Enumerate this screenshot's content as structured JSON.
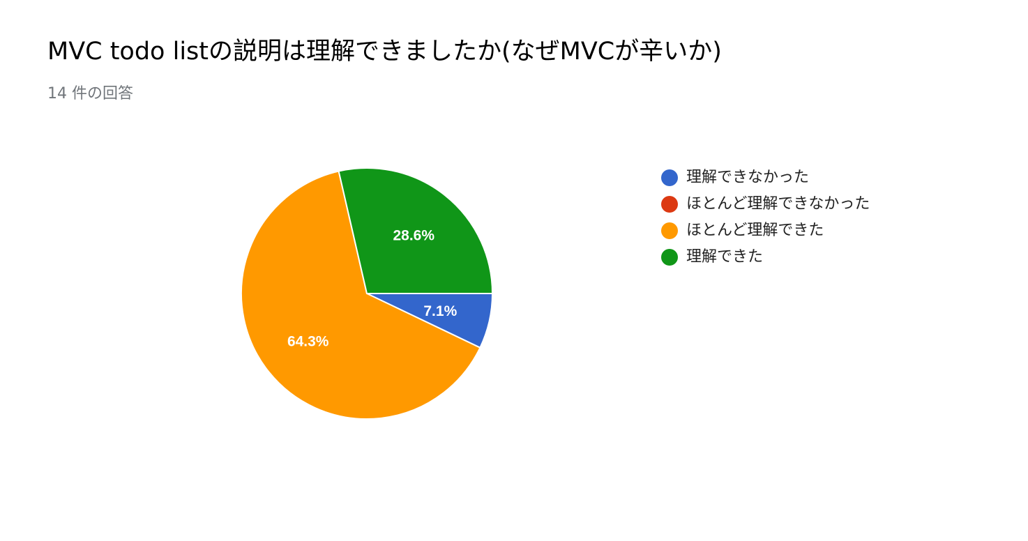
{
  "title": "MVC todo listの説明は理解できましたか(なぜMVCが辛いか)",
  "subtitle": "14 件の回答",
  "chart_data": {
    "type": "pie",
    "categories": [
      "理解できなかった",
      "ほとんど理解できなかった",
      "ほとんど理解できた",
      "理解できた"
    ],
    "values": [
      7.1,
      0,
      64.3,
      28.6
    ],
    "data_labels": [
      "7.1%",
      "",
      "64.3%",
      "28.6%"
    ],
    "colors": [
      "#3366cc",
      "#dc3912",
      "#ff9900",
      "#109618"
    ],
    "legend_position": "right",
    "start_direction": "east",
    "rotation": "clockwise"
  }
}
